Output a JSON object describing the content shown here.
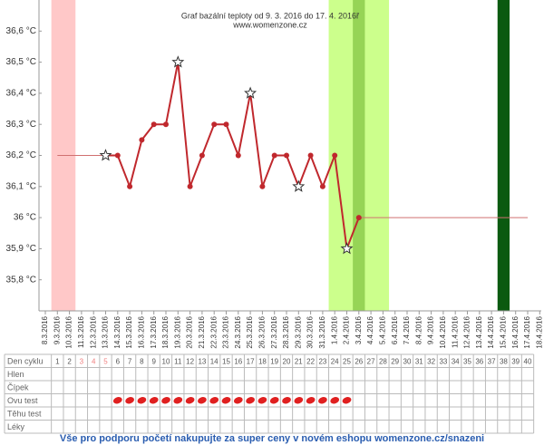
{
  "chart_data": {
    "type": "line",
    "title": "Graf bazální teploty od 9. 3. 2016 do 17. 4. 2016ř",
    "subtitle": "www.womenzone.cz",
    "categories": [
      "8.3.2016",
      "9.3.2016",
      "10.3.2016",
      "11.3.2016",
      "12.3.2016",
      "13.3.2016",
      "14.3.2016",
      "15.3.2016",
      "16.3.2016",
      "17.3.2016",
      "18.3.2016",
      "19.3.2016",
      "20.3.2016",
      "21.3.2016",
      "22.3.2016",
      "23.3.2016",
      "24.3.2016",
      "25.3.2016",
      "26.3.2016",
      "27.3.2016",
      "28.3.2016",
      "29.3.2016",
      "30.3.2016",
      "31.3.2016",
      "1.4.2016",
      "2.4.2016",
      "3.4.2016",
      "4.4.2016",
      "5.4.2016",
      "6.4.2016",
      "7.4.2016",
      "8.4.2016",
      "9.4.2016",
      "10.4.2016",
      "11.4.2016",
      "12.4.2016",
      "13.4.2016",
      "14.4.2016",
      "15.4.2016",
      "16.4.2016",
      "17.4.2016",
      "18.4.2016"
    ],
    "series": [
      {
        "color": "#c0282d",
        "values": [
          null,
          null,
          null,
          null,
          null,
          36.2,
          36.2,
          36.1,
          36.25,
          36.3,
          36.3,
          36.5,
          36.1,
          36.2,
          36.3,
          36.3,
          36.2,
          36.4,
          36.1,
          36.2,
          36.2,
          36.1,
          36.2,
          36.1,
          36.2,
          35.9,
          36.0,
          null,
          null,
          null,
          null,
          null,
          null,
          null,
          null,
          null,
          null,
          null,
          null,
          null,
          null,
          null
        ],
        "markers": [
          null,
          null,
          null,
          null,
          null,
          "star",
          "circle",
          "circle",
          "circle",
          "circle",
          "circle",
          "star",
          "circle",
          "circle",
          "circle",
          "circle",
          "circle",
          "star",
          "circle",
          "circle",
          "circle",
          "star",
          "circle",
          "circle",
          "circle",
          "star",
          "circle",
          null,
          null,
          null,
          null,
          null,
          null,
          null,
          null,
          null,
          null,
          null,
          null,
          null,
          null,
          null
        ]
      }
    ],
    "reference_lines": [
      {
        "from": "9.3.2016",
        "to": "13.3.2016",
        "value": 36.2,
        "color": "#d07070"
      },
      {
        "from": "3.4.2016",
        "to": "17.4.2016",
        "value": 36.0,
        "color": "#d07070"
      }
    ],
    "bands": [
      {
        "from": "9.3.2016",
        "to": "10.3.2016",
        "color": "#ffc8c8"
      },
      {
        "from": "1.4.2016",
        "to": "5.4.2016",
        "color": "#ccff8c"
      },
      {
        "from": "3.4.2016",
        "to": "3.4.2016",
        "color": "#96d456"
      },
      {
        "from": "15.4.2016",
        "to": "15.4.2016",
        "color": "#0b5a10"
      }
    ],
    "ylim": [
      35.7,
      36.7
    ],
    "yticks": [
      {
        "value": 35.8,
        "label": "35,8 °C"
      },
      {
        "value": 35.9,
        "label": "35,9 °C"
      },
      {
        "value": 36.0,
        "label": "36 °C"
      },
      {
        "value": 36.1,
        "label": "36,1 °C"
      },
      {
        "value": 36.2,
        "label": "36,2 °C"
      },
      {
        "value": 36.3,
        "label": "36,3 °C"
      },
      {
        "value": 36.4,
        "label": "36,4 °C"
      },
      {
        "value": 36.5,
        "label": "36,5 °C"
      },
      {
        "value": 36.6,
        "label": "36,6 °C"
      }
    ]
  },
  "cycle_table": {
    "row_labels": [
      "Den cyklu",
      "Hlen",
      "Čípek",
      "Ovu test",
      "Těhu test",
      "Léky"
    ],
    "days": [
      1,
      2,
      3,
      4,
      5,
      6,
      7,
      8,
      9,
      10,
      11,
      12,
      13,
      14,
      15,
      16,
      17,
      18,
      19,
      20,
      21,
      22,
      23,
      24,
      25,
      26,
      27,
      28,
      29,
      30,
      31,
      32,
      33,
      34,
      35,
      36,
      37,
      38,
      39,
      40
    ],
    "menstruation_days": [
      3,
      4,
      5
    ],
    "menstruation_color": "#f08080",
    "ovu_test_positive": {
      "from": 6,
      "to": 25,
      "color": "#e02020"
    }
  },
  "footer": "Vše pro podporu početí nakupujte za super ceny v novém eshopu womenzone.cz/snazeni"
}
